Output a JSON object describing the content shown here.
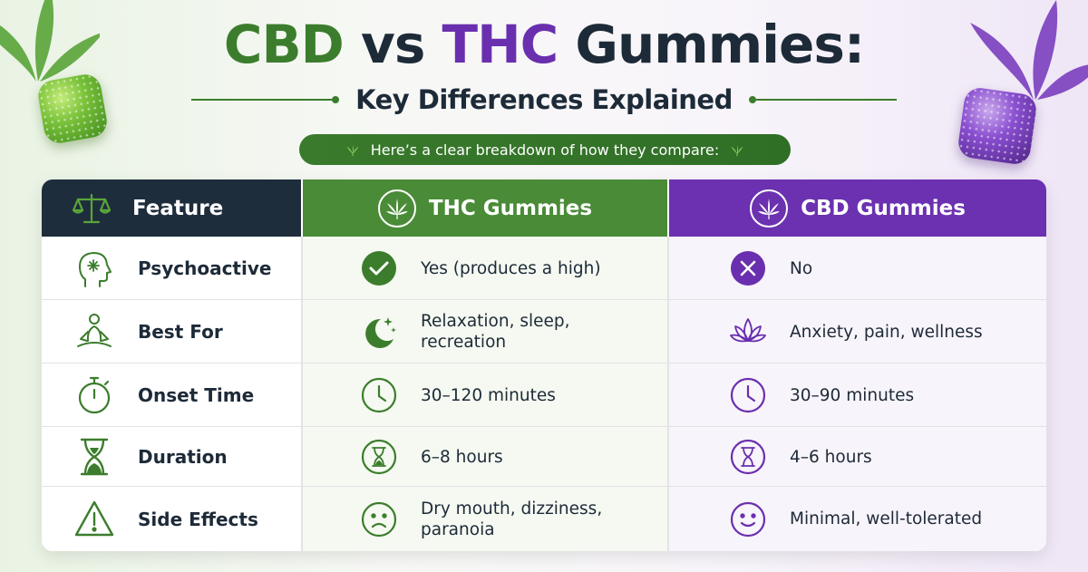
{
  "title": {
    "part1": "CBD",
    "part2": " vs ",
    "part3": "THC",
    "part4": " Gummies:"
  },
  "subtitle": "Key Differences Explained",
  "intro": "Here’s a clear breakdown of how they compare:",
  "colors": {
    "cbd_green": "#3b7d2c",
    "thc_purple": "#6a2fae",
    "dark_navy": "#1e2d3c"
  },
  "table": {
    "headers": {
      "feature": "Feature",
      "thc": "THC Gummies",
      "cbd": "CBD Gummies"
    },
    "header_icons": {
      "feature": "scale-icon",
      "thc": "cannabis-leaf-icon",
      "cbd": "cannabis-leaf-icon"
    },
    "rows": [
      {
        "feature": "Psychoactive",
        "feature_icon": "head-brain-icon",
        "thc": "Yes (produces a high)",
        "thc_icon": "check-circle-icon",
        "cbd": "No",
        "cbd_icon": "x-circle-icon"
      },
      {
        "feature": "Best For",
        "feature_icon": "meditation-icon",
        "thc": "Relaxation, sleep, recreation",
        "thc_icon": "moon-stars-icon",
        "cbd": "Anxiety, pain, wellness",
        "cbd_icon": "lotus-icon"
      },
      {
        "feature": "Onset Time",
        "feature_icon": "stopwatch-icon",
        "thc": "30–120 minutes",
        "thc_icon": "clock-icon",
        "cbd": "30–90 minutes",
        "cbd_icon": "clock-icon"
      },
      {
        "feature": "Duration",
        "feature_icon": "hourglass-icon",
        "thc": "6–8 hours",
        "thc_icon": "hourglass-circle-icon",
        "cbd": "4–6 hours",
        "cbd_icon": "hourglass-circle-icon"
      },
      {
        "feature": "Side Effects",
        "feature_icon": "warning-icon",
        "thc": "Dry mouth, dizziness, paranoia",
        "thc_icon": "sad-face-icon",
        "cbd": "Minimal, well-tolerated",
        "cbd_icon": "smile-face-icon"
      }
    ]
  }
}
